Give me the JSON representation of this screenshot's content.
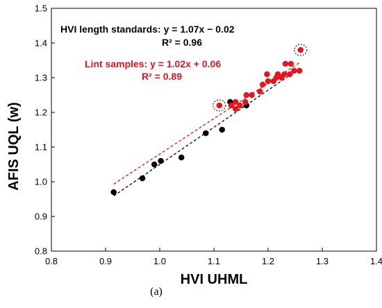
{
  "figure": {
    "caption": "(a)"
  },
  "chart_data": {
    "type": "scatter",
    "xlabel": "HVI UHML",
    "ylabel": "AFIS UQL (w)",
    "xlim": [
      0.8,
      1.4
    ],
    "ylim": [
      0.8,
      1.5
    ],
    "xticks": [
      "0.8",
      "0.9",
      "1.0",
      "1.1",
      "1.2",
      "1.3",
      "1.4"
    ],
    "yticks": [
      "0.8",
      "0.9",
      "1.0",
      "1.1",
      "1.2",
      "1.3",
      "1.4",
      "1.5"
    ],
    "grid": false,
    "series": [
      {
        "name": "HVI length standards",
        "color": "#000000",
        "points": [
          {
            "x": 0.915,
            "y": 0.97
          },
          {
            "x": 0.968,
            "y": 1.01
          },
          {
            "x": 0.99,
            "y": 1.05
          },
          {
            "x": 1.002,
            "y": 1.06
          },
          {
            "x": 1.04,
            "y": 1.07
          },
          {
            "x": 1.085,
            "y": 1.14
          },
          {
            "x": 1.115,
            "y": 1.15
          },
          {
            "x": 1.13,
            "y": 1.23
          },
          {
            "x": 1.16,
            "y": 1.22
          }
        ],
        "fit": {
          "equation": "HVI length standards: y = 1.07x − 0.02",
          "r2": "R² = 0.96",
          "slope": 1.07,
          "intercept": -0.02,
          "x_range": [
            0.915,
            1.245
          ],
          "line_style": "dashed"
        }
      },
      {
        "name": "Lint samples",
        "color": "#e8141c",
        "points": [
          {
            "x": 1.11,
            "y": 1.22
          },
          {
            "x": 1.132,
            "y": 1.22
          },
          {
            "x": 1.14,
            "y": 1.21
          },
          {
            "x": 1.14,
            "y": 1.23
          },
          {
            "x": 1.148,
            "y": 1.22
          },
          {
            "x": 1.158,
            "y": 1.23
          },
          {
            "x": 1.16,
            "y": 1.25
          },
          {
            "x": 1.17,
            "y": 1.25
          },
          {
            "x": 1.185,
            "y": 1.26
          },
          {
            "x": 1.19,
            "y": 1.28
          },
          {
            "x": 1.198,
            "y": 1.31
          },
          {
            "x": 1.2,
            "y": 1.29
          },
          {
            "x": 1.21,
            "y": 1.29
          },
          {
            "x": 1.215,
            "y": 1.3
          },
          {
            "x": 1.218,
            "y": 1.31
          },
          {
            "x": 1.225,
            "y": 1.3
          },
          {
            "x": 1.23,
            "y": 1.31
          },
          {
            "x": 1.232,
            "y": 1.34
          },
          {
            "x": 1.24,
            "y": 1.31
          },
          {
            "x": 1.242,
            "y": 1.34
          },
          {
            "x": 1.248,
            "y": 1.32
          },
          {
            "x": 1.258,
            "y": 1.32
          },
          {
            "x": 1.26,
            "y": 1.38
          }
        ],
        "fit": {
          "equation": "Lint samples: y = 1.02x + 0.06",
          "r2": "R² = 0.89",
          "slope": 1.02,
          "intercept": 0.06,
          "x_range": [
            0.915,
            1.26
          ],
          "line_style": "dashed"
        }
      }
    ],
    "highlighted_points": [
      {
        "x": 1.11,
        "y": 1.22,
        "style": "dashed circle"
      },
      {
        "x": 1.26,
        "y": 1.38,
        "style": "dashed circle"
      }
    ]
  }
}
